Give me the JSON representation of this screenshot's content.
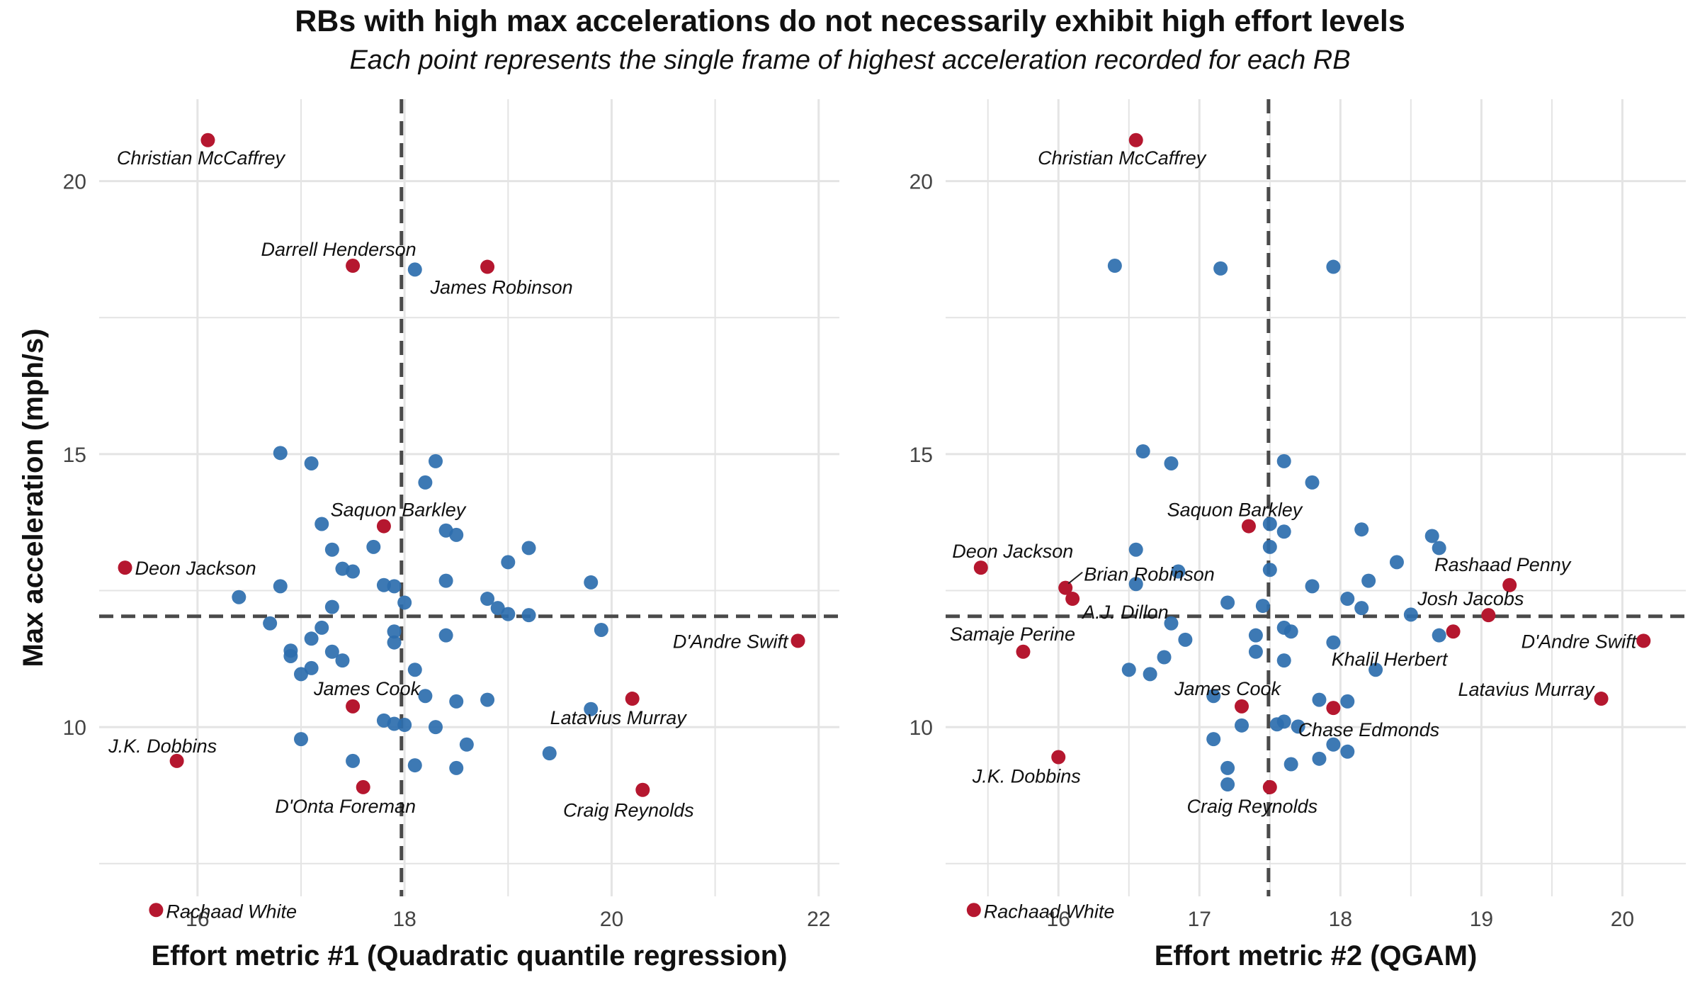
{
  "title": "RBs with high max accelerations do not necessarily exhibit high effort levels",
  "subtitle": "Each point represents the single frame of highest acceleration recorded for each RB",
  "colors": {
    "highlight": "#b5172f",
    "other": "#2d6eae",
    "refline": "#4a4a4a",
    "grid": "#e4e4e4"
  },
  "chart_data": [
    {
      "type": "scatter",
      "xlabel": "Effort metric #1 (Quadratic quantile regression)",
      "ylabel": "Max acceleration (mph/s)",
      "xlim": [
        15.05,
        22.2
      ],
      "ylim": [
        6.9,
        21.5
      ],
      "xticks": [
        16,
        18,
        20,
        22
      ],
      "yticks": [
        10,
        15,
        20
      ],
      "xref": 17.97,
      "yref": 12.03,
      "grid": true,
      "highlighted": [
        {
          "name": "Christian McCaffrey",
          "x": 16.1,
          "y": 20.75
        },
        {
          "name": "Darrell Henderson",
          "x": 17.5,
          "y": 18.45
        },
        {
          "name": "James Robinson",
          "x": 18.8,
          "y": 18.43
        },
        {
          "name": "Saquon Barkley",
          "x": 17.8,
          "y": 13.68
        },
        {
          "name": "Deon Jackson",
          "x": 15.3,
          "y": 12.92
        },
        {
          "name": "D'Andre Swift",
          "x": 21.8,
          "y": 11.58
        },
        {
          "name": "James Cook",
          "x": 17.5,
          "y": 10.38
        },
        {
          "name": "Latavius Murray",
          "x": 20.2,
          "y": 10.52
        },
        {
          "name": "J.K. Dobbins",
          "x": 15.8,
          "y": 9.38
        },
        {
          "name": "D'Onta Foreman",
          "x": 17.6,
          "y": 8.9
        },
        {
          "name": "Craig Reynolds",
          "x": 20.3,
          "y": 8.85
        },
        {
          "name": "Rachaad White",
          "x": 15.6,
          "y": 6.65
        }
      ],
      "others": [
        {
          "x": 18.1,
          "y": 18.38
        },
        {
          "x": 16.8,
          "y": 15.02
        },
        {
          "x": 17.1,
          "y": 14.83
        },
        {
          "x": 18.3,
          "y": 14.87
        },
        {
          "x": 18.2,
          "y": 14.48
        },
        {
          "x": 17.2,
          "y": 13.72
        },
        {
          "x": 18.4,
          "y": 13.6
        },
        {
          "x": 18.5,
          "y": 13.52
        },
        {
          "x": 17.3,
          "y": 13.25
        },
        {
          "x": 19.2,
          "y": 13.28
        },
        {
          "x": 17.7,
          "y": 13.3
        },
        {
          "x": 19.0,
          "y": 13.02
        },
        {
          "x": 17.4,
          "y": 12.9
        },
        {
          "x": 17.5,
          "y": 12.85
        },
        {
          "x": 18.4,
          "y": 12.68
        },
        {
          "x": 16.8,
          "y": 12.58
        },
        {
          "x": 17.8,
          "y": 12.6
        },
        {
          "x": 17.9,
          "y": 12.58
        },
        {
          "x": 19.8,
          "y": 12.65
        },
        {
          "x": 16.4,
          "y": 12.38
        },
        {
          "x": 18.8,
          "y": 12.35
        },
        {
          "x": 18.0,
          "y": 12.28
        },
        {
          "x": 17.3,
          "y": 12.2
        },
        {
          "x": 18.9,
          "y": 12.18
        },
        {
          "x": 19.0,
          "y": 12.07
        },
        {
          "x": 19.2,
          "y": 12.05
        },
        {
          "x": 16.7,
          "y": 11.9
        },
        {
          "x": 17.2,
          "y": 11.82
        },
        {
          "x": 19.9,
          "y": 11.78
        },
        {
          "x": 17.9,
          "y": 11.75
        },
        {
          "x": 18.4,
          "y": 11.68
        },
        {
          "x": 17.1,
          "y": 11.62
        },
        {
          "x": 17.9,
          "y": 11.55
        },
        {
          "x": 16.9,
          "y": 11.4
        },
        {
          "x": 17.3,
          "y": 11.38
        },
        {
          "x": 16.9,
          "y": 11.3
        },
        {
          "x": 17.4,
          "y": 11.22
        },
        {
          "x": 17.1,
          "y": 11.08
        },
        {
          "x": 18.1,
          "y": 11.05
        },
        {
          "x": 17.0,
          "y": 10.97
        },
        {
          "x": 18.2,
          "y": 10.57
        },
        {
          "x": 18.8,
          "y": 10.5
        },
        {
          "x": 18.5,
          "y": 10.47
        },
        {
          "x": 19.8,
          "y": 10.33
        },
        {
          "x": 17.8,
          "y": 10.12
        },
        {
          "x": 17.9,
          "y": 10.06
        },
        {
          "x": 18.0,
          "y": 10.04
        },
        {
          "x": 18.3,
          "y": 10.0
        },
        {
          "x": 17.0,
          "y": 9.78
        },
        {
          "x": 18.6,
          "y": 9.68
        },
        {
          "x": 19.4,
          "y": 9.52
        },
        {
          "x": 17.5,
          "y": 9.38
        },
        {
          "x": 18.1,
          "y": 9.3
        },
        {
          "x": 18.5,
          "y": 9.25
        }
      ]
    },
    {
      "type": "scatter",
      "xlabel": "Effort metric #2 (QGAM)",
      "ylabel": "",
      "xlim": [
        15.2,
        20.45
      ],
      "ylim": [
        6.9,
        21.5
      ],
      "xticks": [
        16,
        17,
        18,
        19,
        20
      ],
      "yticks": [
        10,
        15,
        20
      ],
      "xref": 17.49,
      "yref": 12.03,
      "grid": true,
      "highlighted": [
        {
          "name": "Christian McCaffrey",
          "x": 16.55,
          "y": 20.75
        },
        {
          "name": "Saquon Barkley",
          "x": 17.35,
          "y": 13.68
        },
        {
          "name": "Deon Jackson",
          "x": 15.45,
          "y": 12.92
        },
        {
          "name": "Rashaad Penny",
          "x": 19.2,
          "y": 12.6
        },
        {
          "name": "Brian Robinson",
          "x": 16.05,
          "y": 12.55
        },
        {
          "name": "A.J. Dillon",
          "x": 16.1,
          "y": 12.35
        },
        {
          "name": "Josh Jacobs",
          "x": 19.05,
          "y": 12.05
        },
        {
          "name": "D'Andre Swift",
          "x": 20.15,
          "y": 11.58
        },
        {
          "name": "Samaje Perine",
          "x": 15.75,
          "y": 11.38
        },
        {
          "name": "Khalil Herbert",
          "x": 18.8,
          "y": 11.75
        },
        {
          "name": "Latavius Murray",
          "x": 19.85,
          "y": 10.52
        },
        {
          "name": "James Cook",
          "x": 17.3,
          "y": 10.38
        },
        {
          "name": "Chase Edmonds",
          "x": 17.95,
          "y": 10.35
        },
        {
          "name": "J.K. Dobbins",
          "x": 16.0,
          "y": 9.45
        },
        {
          "name": "Craig Reynolds",
          "x": 17.5,
          "y": 8.9
        },
        {
          "name": "Rachaad White",
          "x": 15.4,
          "y": 6.65
        }
      ],
      "others": [
        {
          "x": 16.4,
          "y": 18.45
        },
        {
          "x": 17.15,
          "y": 18.4
        },
        {
          "x": 17.95,
          "y": 18.43
        },
        {
          "x": 16.6,
          "y": 15.05
        },
        {
          "x": 16.8,
          "y": 14.83
        },
        {
          "x": 17.6,
          "y": 14.87
        },
        {
          "x": 17.8,
          "y": 14.48
        },
        {
          "x": 17.5,
          "y": 13.72
        },
        {
          "x": 17.6,
          "y": 13.58
        },
        {
          "x": 18.15,
          "y": 13.62
        },
        {
          "x": 18.65,
          "y": 13.5
        },
        {
          "x": 17.5,
          "y": 13.3
        },
        {
          "x": 16.55,
          "y": 13.25
        },
        {
          "x": 18.7,
          "y": 13.28
        },
        {
          "x": 18.4,
          "y": 13.02
        },
        {
          "x": 16.85,
          "y": 12.85
        },
        {
          "x": 17.5,
          "y": 12.88
        },
        {
          "x": 18.2,
          "y": 12.68
        },
        {
          "x": 16.55,
          "y": 12.62
        },
        {
          "x": 17.8,
          "y": 12.58
        },
        {
          "x": 18.05,
          "y": 12.35
        },
        {
          "x": 17.2,
          "y": 12.28
        },
        {
          "x": 17.45,
          "y": 12.22
        },
        {
          "x": 18.15,
          "y": 12.18
        },
        {
          "x": 18.5,
          "y": 12.06
        },
        {
          "x": 16.8,
          "y": 11.9
        },
        {
          "x": 17.6,
          "y": 11.82
        },
        {
          "x": 17.65,
          "y": 11.75
        },
        {
          "x": 17.4,
          "y": 11.68
        },
        {
          "x": 18.7,
          "y": 11.68
        },
        {
          "x": 16.9,
          "y": 11.6
        },
        {
          "x": 17.95,
          "y": 11.55
        },
        {
          "x": 17.4,
          "y": 11.38
        },
        {
          "x": 16.75,
          "y": 11.28
        },
        {
          "x": 17.6,
          "y": 11.22
        },
        {
          "x": 16.5,
          "y": 11.05
        },
        {
          "x": 16.65,
          "y": 10.97
        },
        {
          "x": 18.25,
          "y": 11.05
        },
        {
          "x": 17.1,
          "y": 10.57
        },
        {
          "x": 17.85,
          "y": 10.5
        },
        {
          "x": 18.05,
          "y": 10.47
        },
        {
          "x": 17.6,
          "y": 10.1
        },
        {
          "x": 17.55,
          "y": 10.05
        },
        {
          "x": 17.3,
          "y": 10.03
        },
        {
          "x": 17.7,
          "y": 10.01
        },
        {
          "x": 17.1,
          "y": 9.78
        },
        {
          "x": 17.95,
          "y": 9.68
        },
        {
          "x": 18.05,
          "y": 9.55
        },
        {
          "x": 17.85,
          "y": 9.42
        },
        {
          "x": 17.65,
          "y": 9.32
        },
        {
          "x": 17.2,
          "y": 9.25
        },
        {
          "x": 17.2,
          "y": 8.95
        }
      ]
    }
  ]
}
